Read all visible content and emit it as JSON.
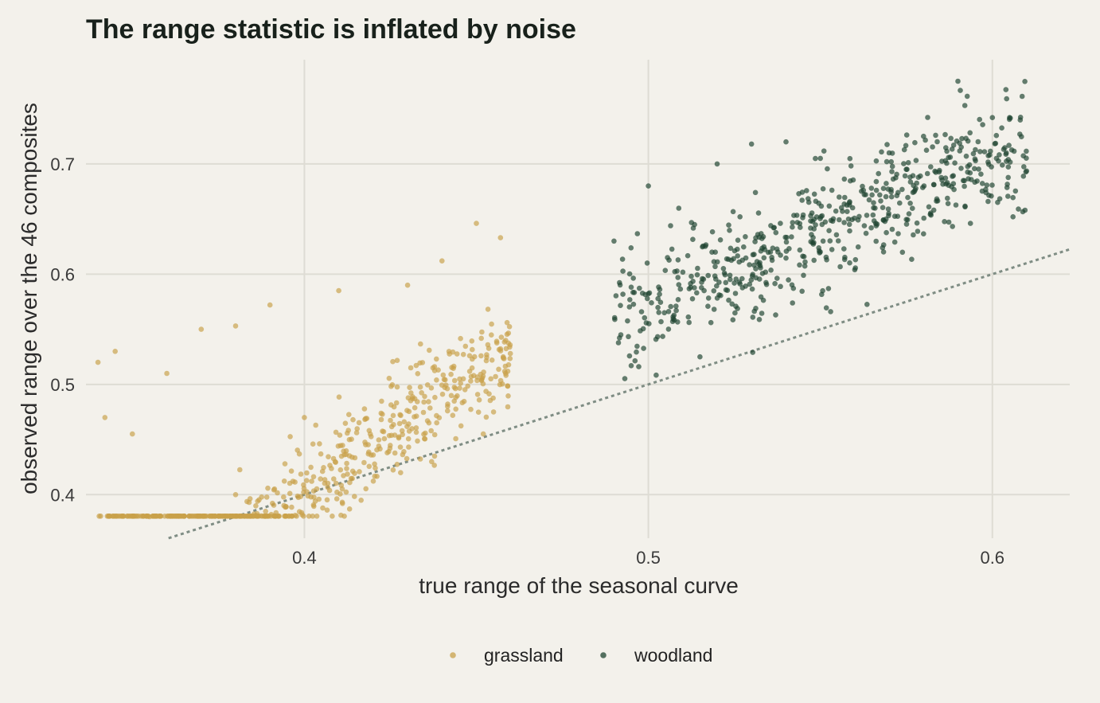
{
  "chart_data": {
    "type": "scatter",
    "title": "The range statistic is inflated by noise",
    "xlabel": "true range of the seasonal curve",
    "ylabel": "observed range over the 46 composites",
    "xlim": [
      0.3365,
      0.6225
    ],
    "ylim": [
      0.3605,
      0.7945
    ],
    "x_ticks": [
      0.4,
      0.5,
      0.6
    ],
    "x_tick_labels": [
      "0.4",
      "0.5",
      "0.6"
    ],
    "y_ticks": [
      0.4,
      0.5,
      0.6,
      0.7
    ],
    "y_tick_labels": [
      "0.4",
      "0.5",
      "0.6",
      "0.7"
    ],
    "grid": true,
    "legend_position": "bottom",
    "reference_line": {
      "type": "identity",
      "label": "",
      "style": "dotted",
      "color": "#7f8d84"
    },
    "colors": {
      "background": "#f3f1eb",
      "grid": "#dedcd4",
      "grassland": "#c8a04a",
      "woodland": "#1f4430",
      "reference": "#7f8d84"
    },
    "series": [
      {
        "name": "grassland",
        "color": "#c8a04a",
        "n_points": 600,
        "x_range": [
          0.34,
          0.46
        ],
        "trend": {
          "intercept": -0.5,
          "slope": 2.25
        },
        "noise_sd": 0.024,
        "sample_points": [
          [
            0.34,
            0.52
          ],
          [
            0.342,
            0.47
          ],
          [
            0.345,
            0.53
          ],
          [
            0.35,
            0.455
          ],
          [
            0.355,
            0.38
          ],
          [
            0.36,
            0.51
          ],
          [
            0.37,
            0.55
          ],
          [
            0.38,
            0.553
          ],
          [
            0.39,
            0.572
          ],
          [
            0.38,
            0.4
          ],
          [
            0.41,
            0.585
          ],
          [
            0.43,
            0.59
          ],
          [
            0.437,
            0.43
          ],
          [
            0.44,
            0.612
          ],
          [
            0.45,
            0.646
          ],
          [
            0.452,
            0.455
          ],
          [
            0.457,
            0.633
          ],
          [
            0.455,
            0.475
          ],
          [
            0.42,
            0.436
          ],
          [
            0.4,
            0.47
          ]
        ]
      },
      {
        "name": "woodland",
        "color": "#1f4430",
        "n_points": 600,
        "x_range": [
          0.49,
          0.61
        ],
        "trend": {
          "intercept": -0.075,
          "slope": 1.3
        },
        "noise_sd": 0.026,
        "sample_points": [
          [
            0.49,
            0.63
          ],
          [
            0.492,
            0.545
          ],
          [
            0.495,
            0.517
          ],
          [
            0.5,
            0.68
          ],
          [
            0.52,
            0.7
          ],
          [
            0.53,
            0.718
          ],
          [
            0.54,
            0.72
          ],
          [
            0.55,
            0.705
          ],
          [
            0.57,
            0.71
          ],
          [
            0.58,
            0.725
          ],
          [
            0.59,
            0.775
          ],
          [
            0.592,
            0.753
          ],
          [
            0.6,
            0.742
          ],
          [
            0.605,
            0.742
          ],
          [
            0.608,
            0.727
          ],
          [
            0.606,
            0.652
          ],
          [
            0.515,
            0.525
          ],
          [
            0.537,
            0.563
          ],
          [
            0.553,
            0.566
          ],
          [
            0.56,
            0.604
          ]
        ]
      }
    ]
  }
}
